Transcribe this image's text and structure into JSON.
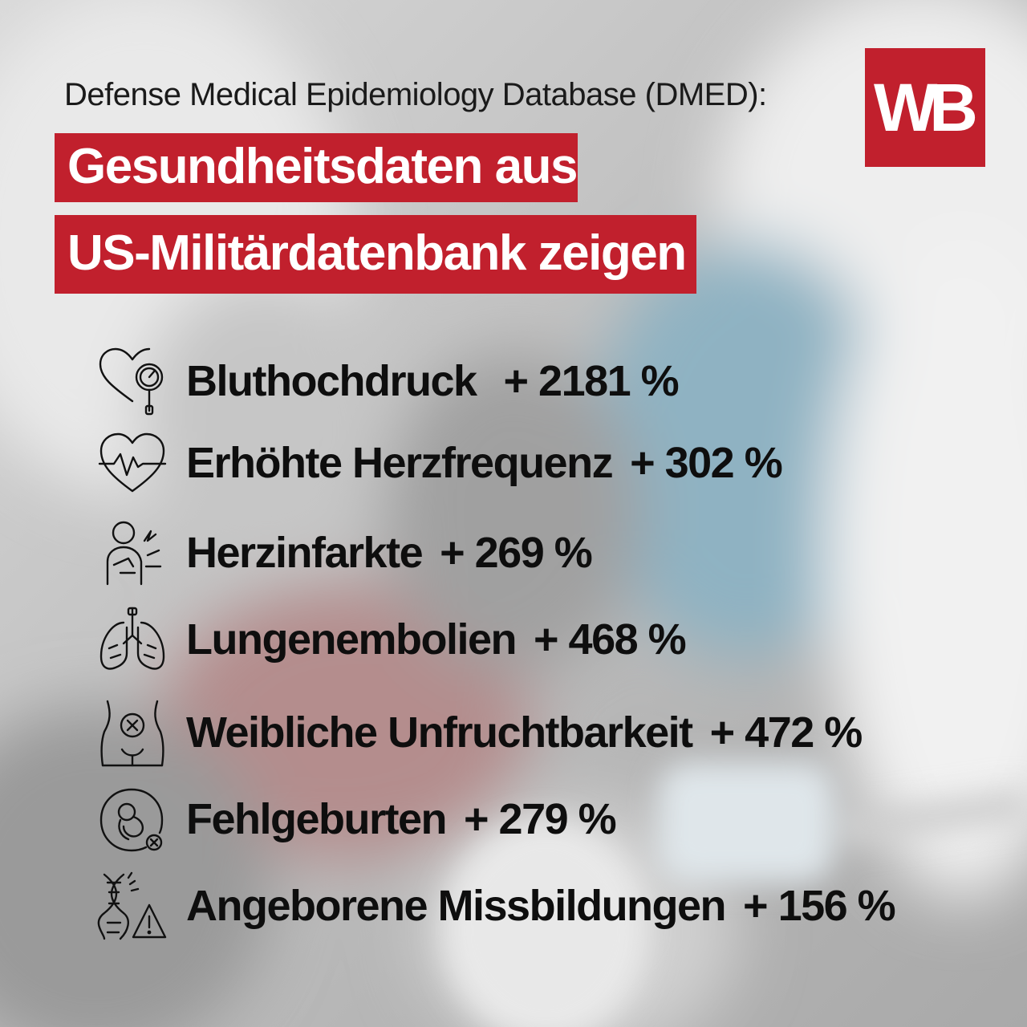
{
  "header": {
    "subtitle": "Defense Medical Epidemiology Database (DMED):",
    "headline_line1": "Gesundheitsdaten aus",
    "headline_line2": "US-Militärdatenbank zeigen",
    "logo": "WB"
  },
  "colors": {
    "accent": "#c1202d",
    "text": "#0e0e0e"
  },
  "stats": [
    {
      "label": "Bluthochdruck",
      "value": "+ 2181 %",
      "icon": "heart-pressure-gauge-icon"
    },
    {
      "label": "Erhöhte Herzfrequenz",
      "value": "+ 302 %",
      "icon": "heart-pulse-icon"
    },
    {
      "label": "Herzinfarkte",
      "value": "+ 269 %",
      "icon": "heart-attack-person-icon"
    },
    {
      "label": "Lungenembolien",
      "value": "+ 468 %",
      "icon": "lungs-icon"
    },
    {
      "label": "Weibliche Unfruchtbarkeit",
      "value": "+ 472 %",
      "icon": "infertility-icon"
    },
    {
      "label": "Fehlgeburten",
      "value": "+ 279 %",
      "icon": "miscarriage-fetus-icon"
    },
    {
      "label": "Angeborene Missbildungen",
      "value": "+ 156 %",
      "icon": "dna-warning-icon"
    }
  ]
}
